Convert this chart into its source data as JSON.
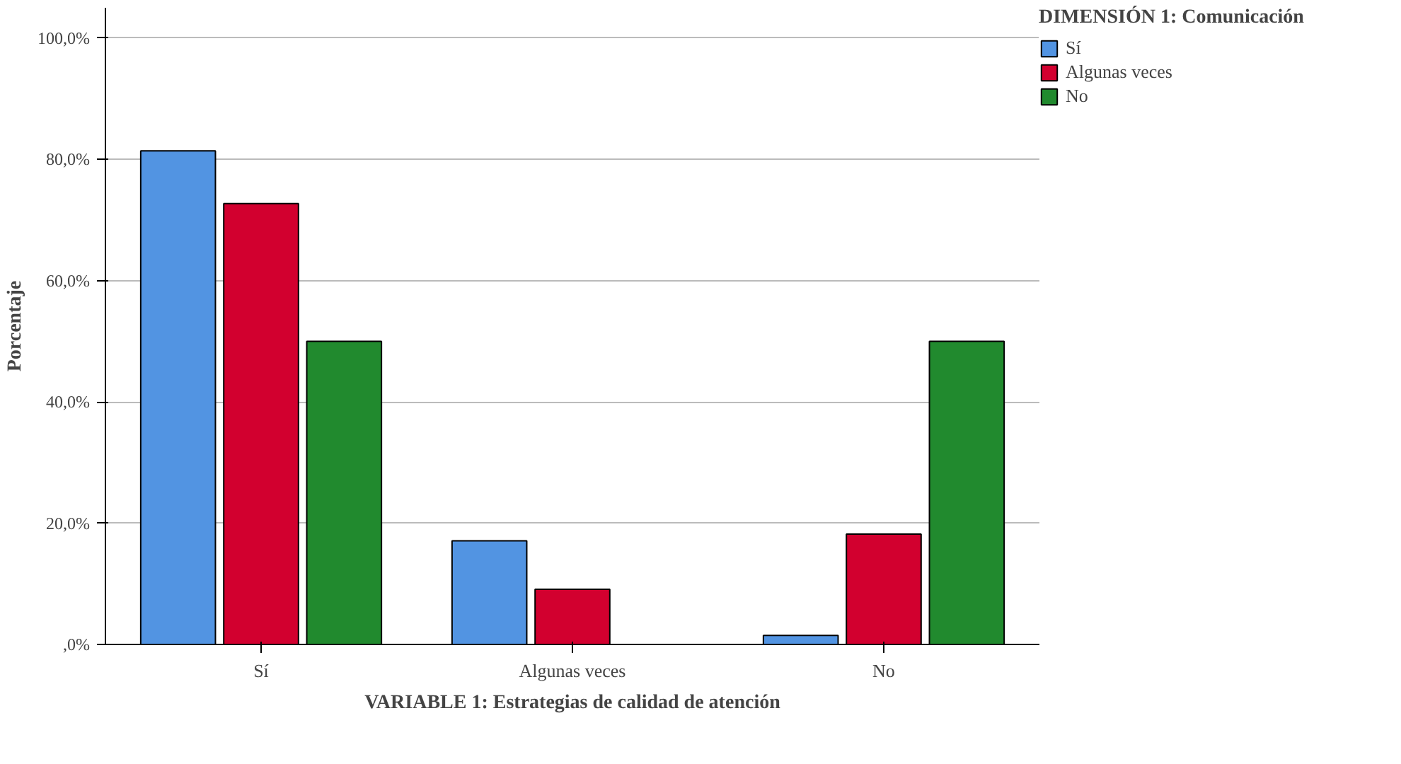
{
  "chart_data": {
    "type": "bar",
    "xlabel": "VARIABLE 1: Estrategias de calidad de atención",
    "ylabel": "Porcentaje",
    "legend_title": "DIMENSIÓN 1: Comunicación",
    "categories": [
      "Sí",
      "Algunas veces",
      "No"
    ],
    "series": [
      {
        "name": "Sí",
        "color": "#5294e2",
        "values": [
          81.4,
          17.1,
          1.5
        ]
      },
      {
        "name": "Algunas veces",
        "color": "#d2002f",
        "values": [
          72.7,
          9.1,
          18.2
        ]
      },
      {
        "name": "No",
        "color": "#218a2e",
        "values": [
          50.0,
          0.0,
          50.0
        ]
      }
    ],
    "ylim": [
      0,
      105
    ],
    "yticks": [
      {
        "value": 0,
        "label": ",0%"
      },
      {
        "value": 20,
        "label": "20,0%"
      },
      {
        "value": 40,
        "label": "40,0%"
      },
      {
        "value": 60,
        "label": "60,0%"
      },
      {
        "value": 80,
        "label": "80,0%"
      },
      {
        "value": 100,
        "label": "100,0%"
      }
    ],
    "grid": "y",
    "legend": "top right"
  }
}
